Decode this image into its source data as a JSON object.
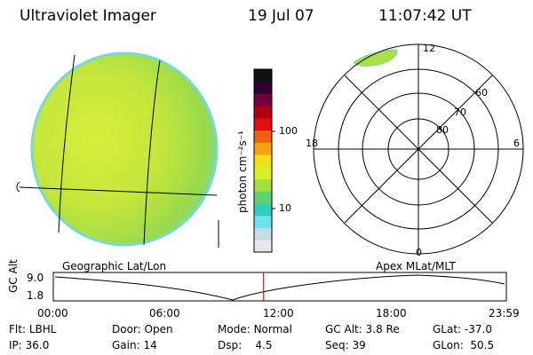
{
  "header": {
    "title": "Ultraviolet Imager",
    "date": "19 Jul 07",
    "time": "11:07:42 UT"
  },
  "colorbar": {
    "label": "photon cm⁻²s⁻¹",
    "ticks": [
      {
        "value": 100,
        "label": "100"
      },
      {
        "value": 10,
        "label": "10"
      }
    ],
    "colors": [
      "#e8e8e8",
      "#c8dce6",
      "#6ee0ee",
      "#30d0c0",
      "#60d070",
      "#a0e040",
      "#d8f028",
      "#f0e018",
      "#f8a010",
      "#f06010",
      "#e01010",
      "#b00010",
      "#700040",
      "#300030",
      "#101010"
    ]
  },
  "polar_plot": {
    "mlt_labels": {
      "top": "12",
      "left": "18",
      "right": "6",
      "bottom": "0"
    },
    "lat_labels": [
      "60",
      "70",
      "80"
    ]
  },
  "panel_labels": {
    "left": "Geographic Lat/Lon",
    "right": "Apex MLat/MLT"
  },
  "altitude_plot": {
    "ylabel": "GC Alt",
    "yticks": [
      "9.0",
      "1.8"
    ],
    "xticks": [
      "00:00",
      "06:00",
      "12:00",
      "18:00",
      "23:59"
    ],
    "current_time_hours": 11.13
  },
  "stats": {
    "row1": [
      {
        "label": "Flt:",
        "value": "LBHL"
      },
      {
        "label": "Door:",
        "value": "Open"
      },
      {
        "label": "Mode:",
        "value": "Normal"
      },
      {
        "label": "GC Alt:",
        "value": "3.8 Re"
      },
      {
        "label": "GLat:",
        "value": "-37.0"
      }
    ],
    "row2": [
      {
        "label": "IP:",
        "value": "36.0"
      },
      {
        "label": "Gain:",
        "value": "14"
      },
      {
        "label": "Dsp:",
        "value": "4.5"
      },
      {
        "label": "Seq:",
        "value": "39"
      },
      {
        "label": "GLon:",
        "value": "50.5"
      }
    ]
  }
}
